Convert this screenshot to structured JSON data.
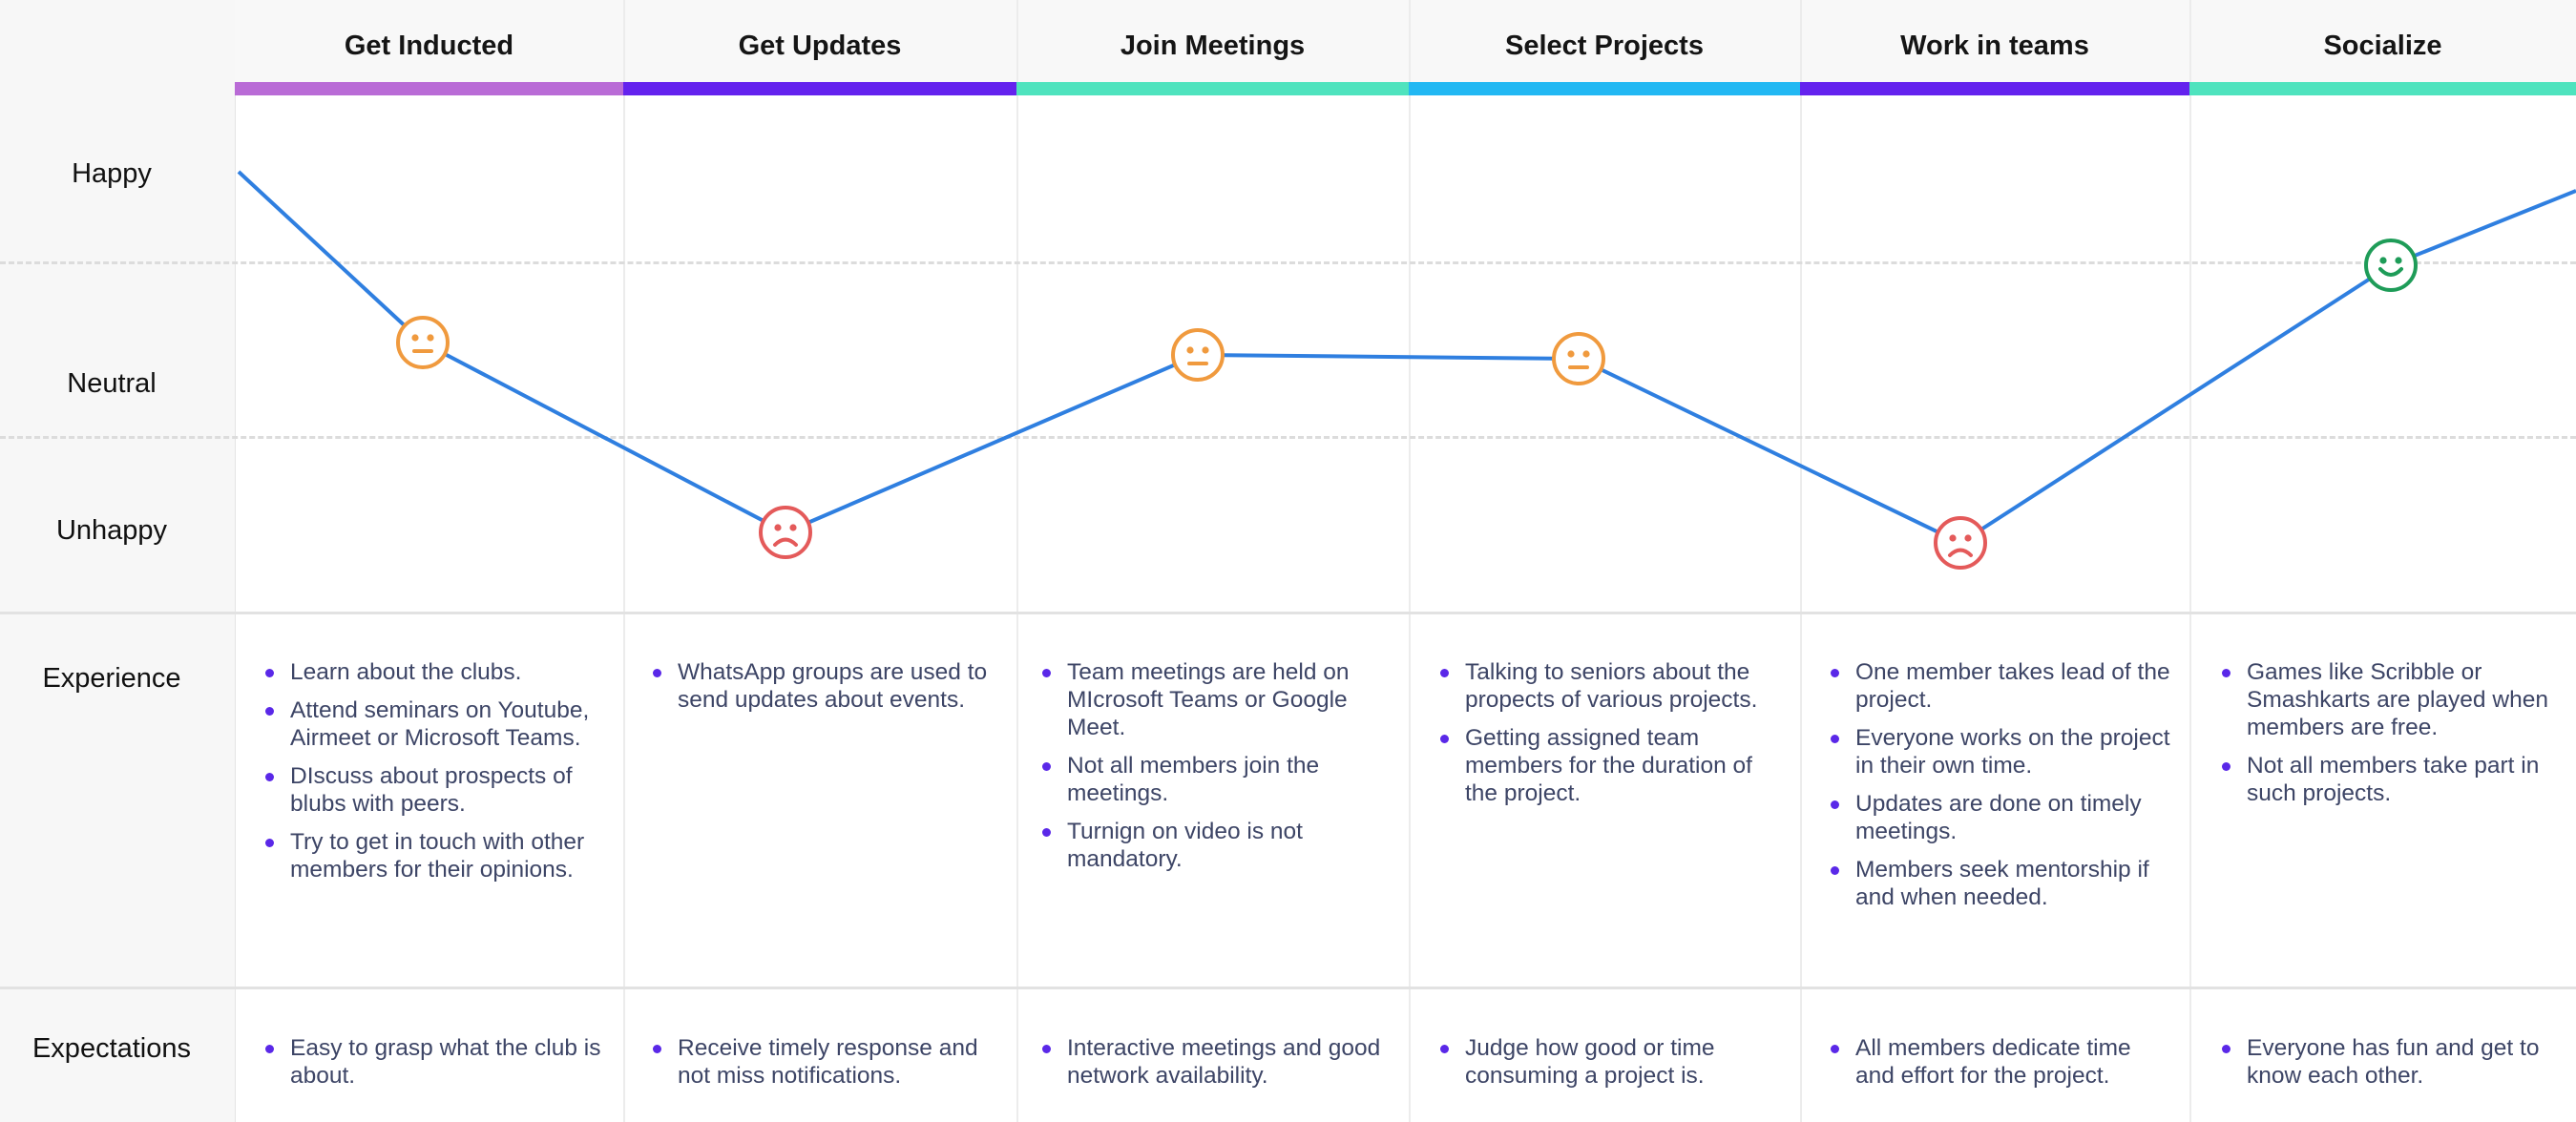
{
  "row_labels": {
    "happy": "Happy",
    "neutral": "Neutral",
    "unhappy": "Unhappy",
    "experience": "Experience",
    "expectations": "Expectations"
  },
  "phases": [
    {
      "title": "Get Inducted",
      "color": "#b96bd6",
      "emotion": "neutral",
      "experience": [
        "Learn about the clubs.",
        "Attend seminars on Youtube, Airmeet or Microsoft Teams.",
        "DIscuss about prospects of blubs with peers.",
        "Try to get in touch with other members for their opinions."
      ],
      "expectations": [
        "Easy to grasp what the club is about."
      ]
    },
    {
      "title": "Get Updates",
      "color": "#6422ee",
      "emotion": "unhappy",
      "experience": [
        "WhatsApp groups are used to send updates about events."
      ],
      "expectations": [
        "Receive timely response and not miss notifications."
      ]
    },
    {
      "title": "Join Meetings",
      "color": "#4fe3be",
      "emotion": "neutral",
      "experience": [
        "Team meetings are held on MIcrosoft Teams or Google Meet.",
        "Not all members join the meetings.",
        "Turnign on video is not mandatory."
      ],
      "expectations": [
        "Interactive meetings and good network availability."
      ]
    },
    {
      "title": "Select Projects",
      "color": "#22b8f3",
      "emotion": "neutral",
      "experience": [
        "Talking to seniors about the propects of various projects.",
        "Getting assigned team members for the duration of the project."
      ],
      "expectations": [
        "Judge how good or time consuming a project is."
      ]
    },
    {
      "title": "Work in teams",
      "color": "#6422ee",
      "emotion": "unhappy",
      "experience": [
        "One member takes lead of the project.",
        "Everyone works on the project in their own time.",
        "Updates are done on timely meetings.",
        "Members seek mentorship if and when needed."
      ],
      "expectations": [
        "All members dedicate time and effort for the project."
      ]
    },
    {
      "title": "Socialize",
      "color": "#4fe3be",
      "emotion": "happy",
      "experience": [
        "Games like Scribble or Smashkarts are played when members are free.",
        "Not all members take part in such projects."
      ],
      "expectations": [
        "Everyone has fun and get to know each other."
      ]
    }
  ],
  "colors": {
    "line": "#2f7fe0",
    "neutral_face": "#f09a3e",
    "unhappy_face": "#e45a5a",
    "happy_face": "#1e9c58",
    "bullet": "#5a28e8"
  }
}
